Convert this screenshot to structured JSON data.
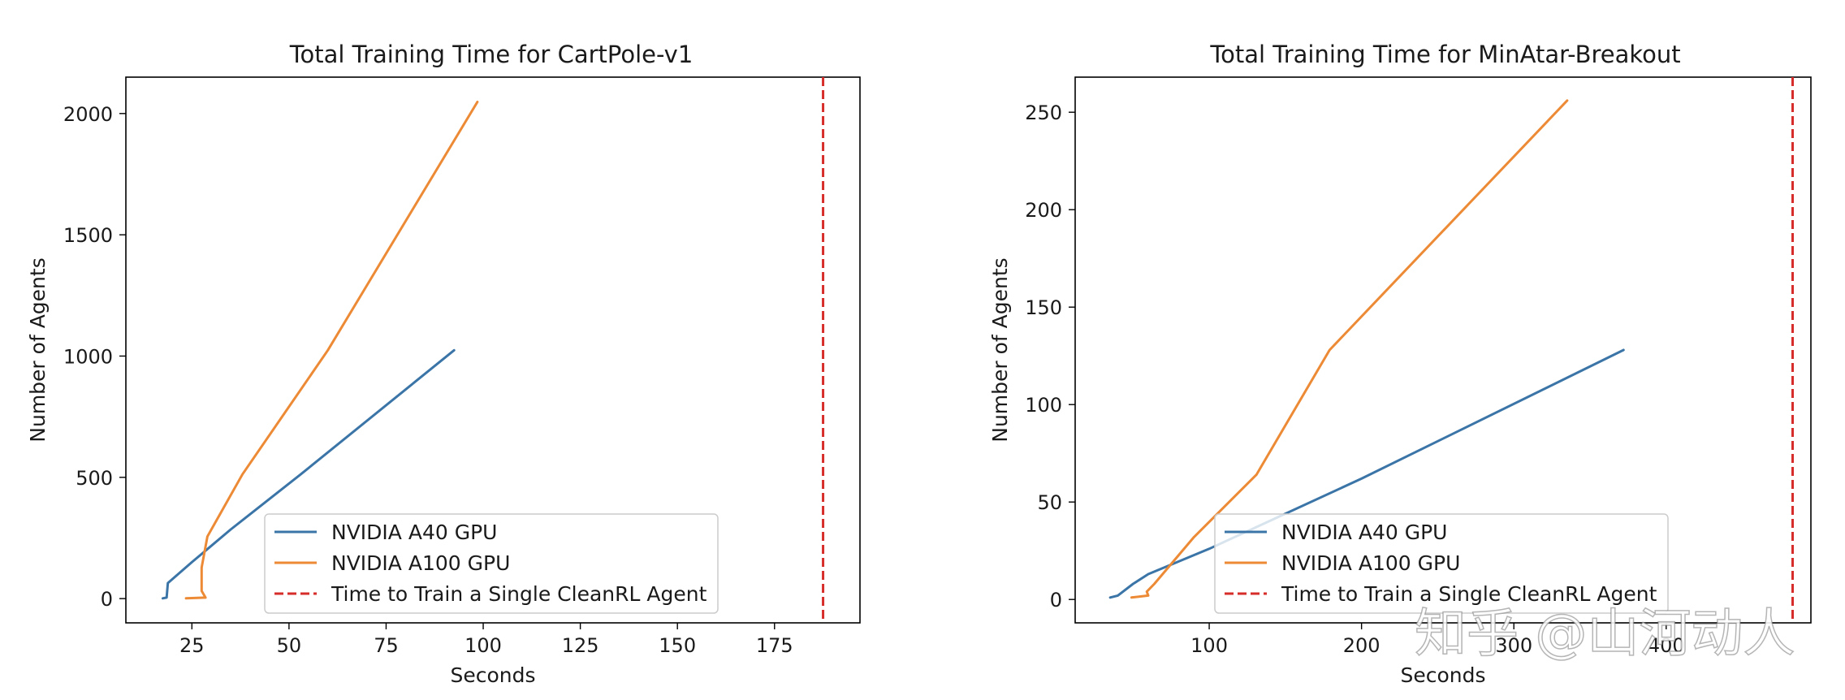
{
  "colors": {
    "a40": "#3b75a7",
    "a100": "#ec8a36",
    "ref": "#d62c2a"
  },
  "watermark": "知乎 @山河动人",
  "chart_data": [
    {
      "type": "line",
      "title": "Total Training Time for CartPole-v1",
      "xlabel": "Seconds",
      "ylabel": "Number of Agents",
      "xlim": [
        8,
        197
      ],
      "ylim": [
        -100,
        2150
      ],
      "xticks": [
        25,
        50,
        75,
        100,
        125,
        150,
        175
      ],
      "yticks": [
        0,
        500,
        1000,
        1500,
        2000
      ],
      "legend_loc": "lower center",
      "series": [
        {
          "name": "NVIDIA A40 GPU",
          "color_key": "a40",
          "dash": false,
          "x": [
            17.5,
            18.5,
            18.8,
            25,
            35,
            53,
            92.5
          ],
          "y": [
            1,
            4,
            64,
            150,
            285,
            512,
            1024
          ]
        },
        {
          "name": "NVIDIA A100 GPU",
          "color_key": "a100",
          "dash": false,
          "x": [
            23.5,
            28.5,
            27.5,
            27.5,
            29,
            38,
            60,
            98.5
          ],
          "y": [
            1,
            4,
            32,
            128,
            256,
            512,
            1024,
            2048
          ]
        }
      ],
      "vlines": [
        {
          "name": "Time to Train a Single CleanRL Agent",
          "color_key": "ref",
          "x": 187.5,
          "dash": true
        }
      ]
    },
    {
      "type": "line",
      "title": "Total Training Time for MinAtar-Breakout",
      "xlabel": "Seconds",
      "ylabel": "Number of Agents",
      "xlim": [
        12,
        495
      ],
      "ylim": [
        -12,
        268
      ],
      "xticks": [
        100,
        200,
        300,
        400
      ],
      "yticks": [
        0,
        50,
        100,
        150,
        200,
        250
      ],
      "legend_loc": "lower center",
      "series": [
        {
          "name": "NVIDIA A40 GPU",
          "color_key": "a40",
          "dash": false,
          "x": [
            35,
            40,
            50,
            60,
            100,
            200,
            372
          ],
          "y": [
            1,
            2,
            8,
            13,
            26,
            62,
            128
          ]
        },
        {
          "name": "NVIDIA A100 GPU",
          "color_key": "a100",
          "dash": false,
          "x": [
            49,
            60,
            59,
            64,
            90,
            131,
            179,
            335
          ],
          "y": [
            1,
            2,
            4,
            8,
            32,
            64,
            128,
            256
          ]
        }
      ],
      "vlines": [
        {
          "name": "Time to Train a Single CleanRL Agent",
          "color_key": "ref",
          "x": 483,
          "dash": true
        }
      ]
    }
  ]
}
